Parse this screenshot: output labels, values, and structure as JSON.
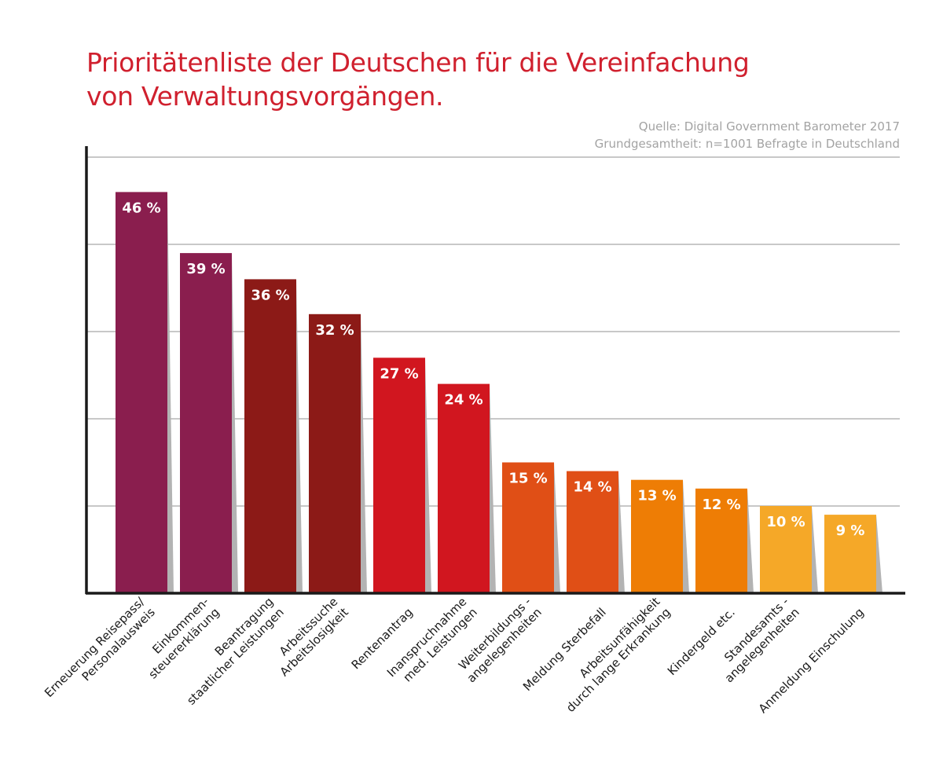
{
  "title_lines": [
    "Prioritätenliste der Deutschen für die Vereinfachung",
    "von Verwaltungsvorgängen."
  ],
  "source_lines": [
    "Quelle: Digital Government Barometer 2017",
    "Grundgesamtheit: n=1001 Befragte in Deutschland"
  ],
  "chart_data": {
    "type": "bar",
    "title": "Prioritätenliste der Deutschen für die Vereinfachung von Verwaltungsvorgängen.",
    "xlabel": "",
    "ylabel": "",
    "ylim": [
      0,
      50
    ],
    "grid": true,
    "unit": "%",
    "categories": [
      [
        "Erneuerung Reisepass/",
        "Personalausweis"
      ],
      [
        "Einkommen-",
        "steuererklärung"
      ],
      [
        "Beantragung",
        "staatlicher Leistungen"
      ],
      [
        "Arbeitssuche",
        "Arbeitslosigkeit"
      ],
      [
        "Rentenantrag"
      ],
      [
        "Inanspruchnahme",
        "med. Leistungen"
      ],
      [
        "Weiterbildungs -",
        "angelegenheiten"
      ],
      [
        "Meldung Sterbefall"
      ],
      [
        "Arbeitsunfähigkeit",
        "durch lange Erkrankung"
      ],
      [
        "Kindergeld etc."
      ],
      [
        "Standesamts -",
        "angelegenheiten"
      ],
      [
        "Anmeldung Einschulung"
      ]
    ],
    "values": [
      46,
      39,
      36,
      32,
      27,
      24,
      15,
      14,
      13,
      12,
      10,
      9
    ],
    "value_labels": [
      "46 %",
      "39 %",
      "36 %",
      "32 %",
      "27 %",
      "24 %",
      "15 %",
      "14 %",
      "13 %",
      "12 %",
      "10 %",
      "9 %"
    ],
    "colors": [
      "#8a1e4e",
      "#8a1e4e",
      "#8c1a17",
      "#8c1a17",
      "#d1161f",
      "#d1161f",
      "#e04f16",
      "#e04f16",
      "#ee7d05",
      "#ee7d05",
      "#f5a828",
      "#f5a828"
    ],
    "shadow_color": "#b3b3b3",
    "grid_color": "#b5b5b5",
    "axis_color": "#1a1a1a",
    "label_color": "#1a1a1a",
    "value_label_color": "#ffffff"
  }
}
